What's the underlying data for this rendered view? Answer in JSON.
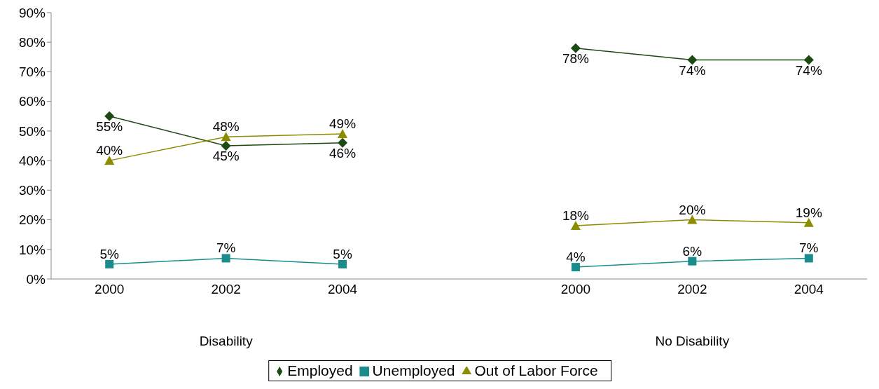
{
  "chart_data": {
    "type": "line",
    "categories": [
      "2000",
      "2002",
      "2004",
      null,
      "2000",
      "2002",
      "2004"
    ],
    "series": [
      {
        "name": "Employed",
        "color": "#1b4a12",
        "marker": "diamond",
        "values": [
          55,
          45,
          46,
          null,
          78,
          74,
          74
        ],
        "value_labels": [
          "55%",
          "45%",
          "46%",
          null,
          "78%",
          "74%",
          "74%"
        ]
      },
      {
        "name": "Unemployed",
        "color": "#1a8c8c",
        "marker": "square",
        "values": [
          5,
          7,
          5,
          null,
          4,
          6,
          7
        ],
        "value_labels": [
          "5%",
          "7%",
          "5%",
          null,
          "4%",
          "6%",
          "7%"
        ]
      },
      {
        "name": "Out of Labor Force",
        "color": "#8c8c00",
        "marker": "triangle",
        "values": [
          40,
          48,
          49,
          null,
          18,
          20,
          19
        ],
        "value_labels": [
          "40%",
          "48%",
          "49%",
          null,
          "18%",
          "20%",
          "19%"
        ]
      }
    ],
    "ylim": [
      0,
      90
    ],
    "yticks": [
      {
        "value": 0,
        "label": "0%"
      },
      {
        "value": 10,
        "label": "10%"
      },
      {
        "value": 20,
        "label": "20%"
      },
      {
        "value": 30,
        "label": "30%"
      },
      {
        "value": 40,
        "label": "40%"
      },
      {
        "value": 50,
        "label": "50%"
      },
      {
        "value": 60,
        "label": "60%"
      },
      {
        "value": 70,
        "label": "70%"
      },
      {
        "value": 80,
        "label": "80%"
      },
      {
        "value": 90,
        "label": "90%"
      }
    ],
    "annotations": [
      "Disability",
      "No Disability"
    ],
    "grid": false,
    "legend": "bottom",
    "line_style": "solid"
  }
}
